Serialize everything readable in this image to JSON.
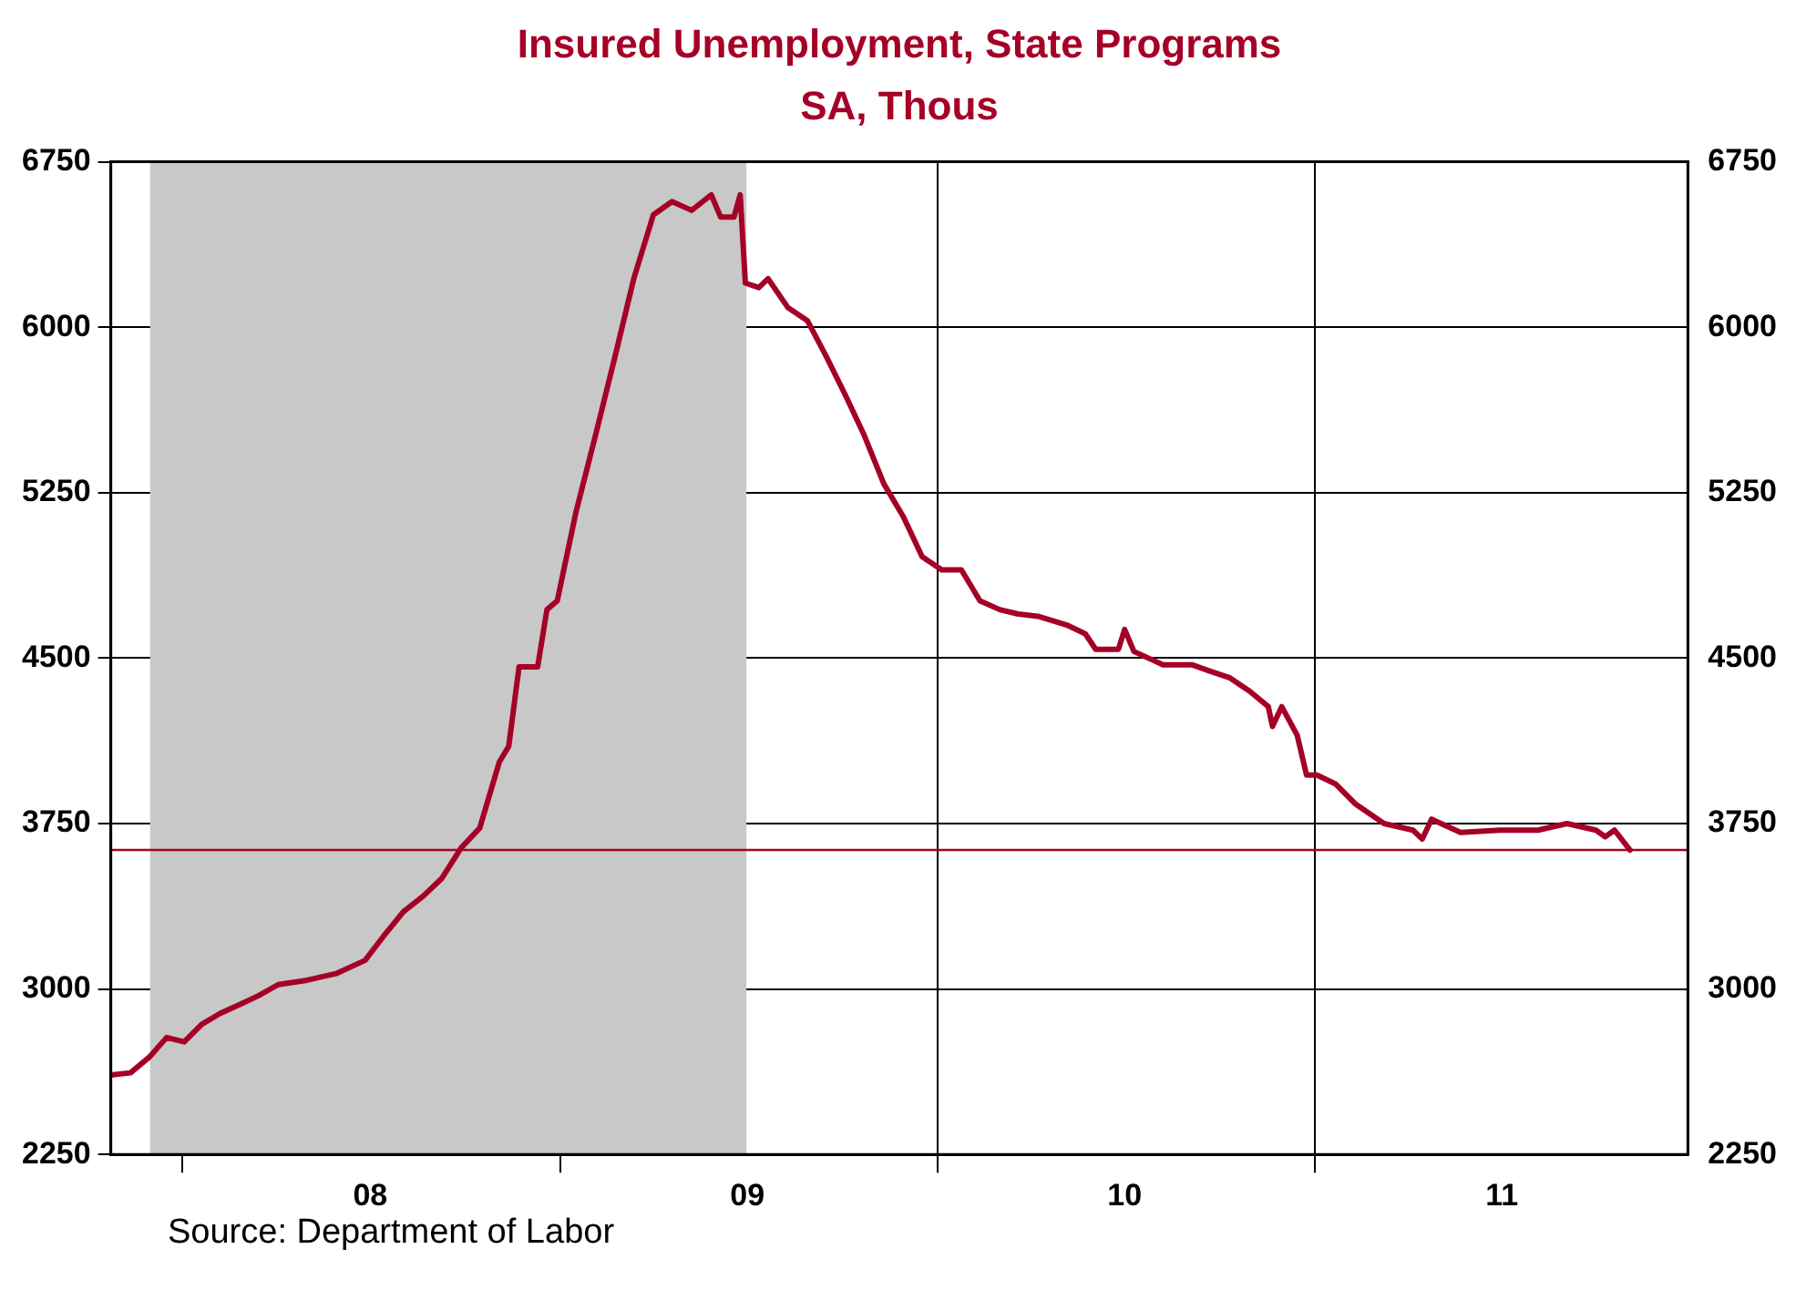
{
  "chart_data": {
    "type": "line",
    "title": "Insured Unemployment, State Programs",
    "subtitle": "SA, Thous",
    "x": [
      "2007-10-24",
      "2007-11-12",
      "2007-11-30",
      "2007-12-17",
      "2008-01-03",
      "2008-01-20",
      "2008-02-07",
      "2008-02-26",
      "2008-03-15",
      "2008-04-03",
      "2008-05-01",
      "2008-05-29",
      "2008-06-26",
      "2008-07-14",
      "2008-08-02",
      "2008-08-21",
      "2008-09-08",
      "2008-09-27",
      "2008-10-15",
      "2008-11-03",
      "2008-11-12",
      "2008-11-22",
      "2008-12-10",
      "2008-12-19",
      "2008-12-29",
      "2009-01-16",
      "2009-02-04",
      "2009-02-23",
      "2009-03-13",
      "2009-04-01",
      "2009-04-19",
      "2009-05-08",
      "2009-05-27",
      "2009-06-05",
      "2009-06-18",
      "2009-06-24",
      "2009-06-29",
      "2009-07-12",
      "2009-07-21",
      "2009-08-09",
      "2009-08-28",
      "2009-09-15",
      "2009-10-04",
      "2009-10-22",
      "2009-11-10",
      "2009-11-29",
      "2009-12-17",
      "2010-01-05",
      "2010-01-24",
      "2010-02-11",
      "2010-03-02",
      "2010-03-20",
      "2010-04-08",
      "2010-05-06",
      "2010-05-24",
      "2010-06-03",
      "2010-06-25",
      "2010-07-01",
      "2010-07-10",
      "2010-08-07",
      "2010-09-04",
      "2010-09-22",
      "2010-10-11",
      "2010-10-30",
      "2010-11-17",
      "2010-11-21",
      "2010-11-30",
      "2010-12-15",
      "2010-12-24",
      "2011-01-03",
      "2011-01-21",
      "2011-02-09",
      "2011-03-09",
      "2011-04-06",
      "2011-04-15",
      "2011-04-24",
      "2011-05-22",
      "2011-06-29",
      "2011-08-05",
      "2011-09-02",
      "2011-09-30",
      "2011-10-09",
      "2011-10-18",
      "2011-11-02"
    ],
    "series": [
      {
        "color": "#a50026",
        "values": [
          2610,
          2620,
          2690,
          2780,
          2760,
          2840,
          2890,
          2930,
          2970,
          3020,
          3040,
          3070,
          3130,
          3240,
          3350,
          3420,
          3500,
          3640,
          3730,
          4030,
          4100,
          4460,
          4460,
          4720,
          4760,
          5160,
          5510,
          5870,
          6220,
          6510,
          6570,
          6530,
          6600,
          6500,
          6500,
          6600,
          6200,
          6180,
          6220,
          6090,
          6030,
          5870,
          5690,
          5510,
          5290,
          5140,
          4960,
          4900,
          4900,
          4760,
          4720,
          4700,
          4690,
          4650,
          4610,
          4540,
          4540,
          4630,
          4530,
          4470,
          4470,
          4440,
          4410,
          4350,
          4280,
          4190,
          4280,
          4150,
          3970,
          3970,
          3930,
          3840,
          3750,
          3720,
          3680,
          3770,
          3710,
          3720,
          3720,
          3750,
          3720,
          3690,
          3720,
          3630
        ]
      }
    ],
    "xlim": [
      "2007-10-24",
      "2011-12-28"
    ],
    "xticks": [
      {
        "value": "2008-01-01",
        "label": null
      },
      {
        "value": "2008-07-01",
        "label": "08"
      },
      {
        "value": "2009-01-01",
        "label": null
      },
      {
        "value": "2009-07-01",
        "label": "09"
      },
      {
        "value": "2010-01-01",
        "label": null
      },
      {
        "value": "2010-07-01",
        "label": "10"
      },
      {
        "value": "2011-01-01",
        "label": null
      },
      {
        "value": "2011-07-01",
        "label": "11"
      }
    ],
    "ylim": [
      2250,
      6750
    ],
    "yticks": [
      2250,
      3000,
      3750,
      4500,
      5250,
      6000,
      6750
    ],
    "y2lim": [
      2250,
      6750
    ],
    "y2ticks": [
      2250,
      3000,
      3750,
      4500,
      5250,
      6000,
      6750
    ],
    "bands": [
      {
        "axis": "x",
        "from": "2007-12-01",
        "to": "2009-06-30",
        "color": "#c8c8c8"
      }
    ],
    "ref_lines": [
      {
        "axis": "y",
        "value": 3630,
        "color": "#a50026"
      }
    ],
    "grid": true,
    "legend": false,
    "marker": "none",
    "line_style": "solid",
    "annotations": [
      "Source:  Department of Labor"
    ]
  }
}
